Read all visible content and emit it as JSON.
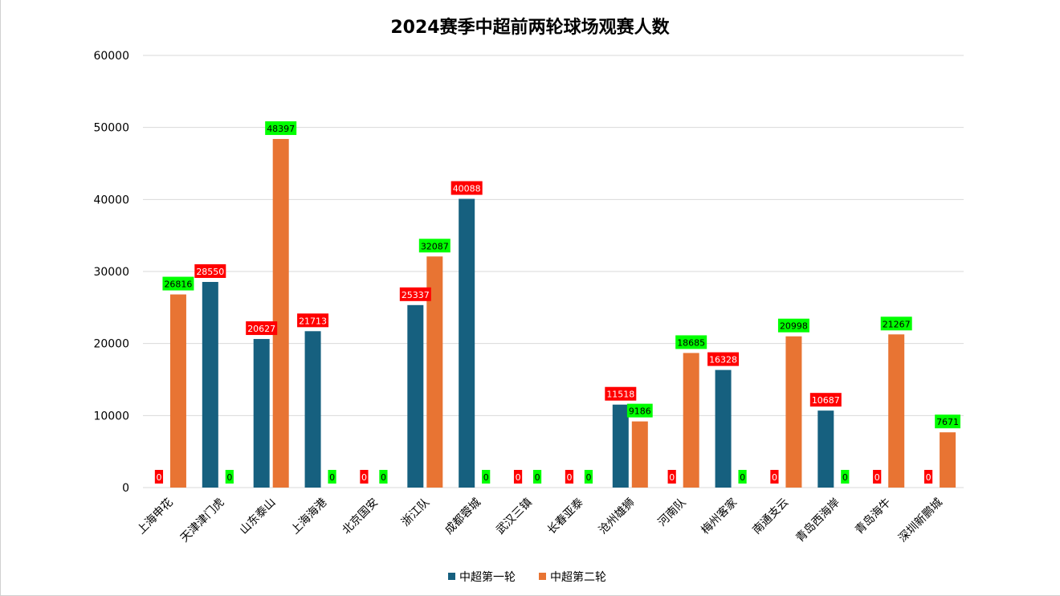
{
  "chart_data": {
    "type": "bar",
    "title": "2024赛季中超前两轮球场观赛人数",
    "xlabel": "",
    "ylabel": "",
    "ylim": [
      0,
      60000
    ],
    "yticks": [
      0,
      10000,
      20000,
      30000,
      40000,
      50000,
      60000
    ],
    "grid": true,
    "legend_position": "bottom",
    "categories": [
      "上海申花",
      "天津津门虎",
      "山东泰山",
      "上海海港",
      "北京国安",
      "浙江队",
      "成都蓉城",
      "武汉三镇",
      "长春亚泰",
      "沧州雄狮",
      "河南队",
      "梅州客家",
      "南通支云",
      "青岛西海岸",
      "青岛海牛",
      "深圳新鹏城"
    ],
    "series": [
      {
        "name": "中超第一轮",
        "color": "#16607f",
        "label_bg": "#ff0000",
        "label_color": "#ffffff",
        "values": [
          0,
          28550,
          20627,
          21713,
          0,
          25337,
          40088,
          0,
          0,
          11518,
          0,
          16328,
          0,
          10687,
          0,
          0
        ]
      },
      {
        "name": "中超第二轮",
        "color": "#e87433",
        "label_bg": "#00ff00",
        "label_color": "#000000",
        "values": [
          26816,
          0,
          48397,
          0,
          0,
          32087,
          0,
          0,
          0,
          9186,
          18685,
          0,
          20998,
          0,
          21267,
          7671
        ]
      }
    ]
  }
}
